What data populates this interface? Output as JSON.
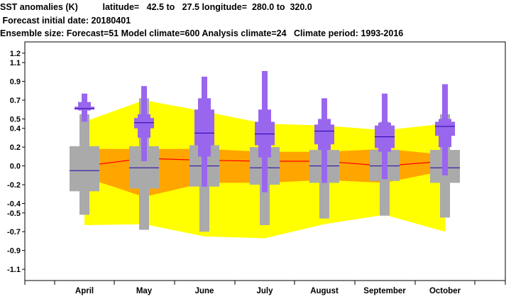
{
  "header": {
    "line1": "SST anomalies (K)          latitude=   42.5 to   27.5 longitude=  280.0 to  320.0",
    "line2": " Forecast initial date: 20180401",
    "line3": "Ensemble size: Forecast=51 Model climate=600 Analysis climate=24   Climate period: 1993-2016"
  },
  "chart_data": {
    "type": "box",
    "categories": [
      "April",
      "May",
      "June",
      "July",
      "August",
      "September",
      "October"
    ],
    "yticks": [
      "1.2",
      "1.1",
      "0.9",
      "0.7",
      "0.5",
      "0.4",
      "0.2",
      "0.0",
      "-0.2",
      "-0.4",
      "-0.5",
      "-0.7",
      "-0.9",
      "-1.1"
    ],
    "ylim": [
      -1.22,
      1.32
    ],
    "grid": false,
    "colors": {
      "climate_outer": "#ffff00",
      "climate_inner": "#ffa500",
      "analysis_line": "#ff0000",
      "climate_box": "#aaaaaa",
      "forecast_box": "#9966ee",
      "median": "#2200aa"
    },
    "climate_band_outer": {
      "upper": [
        0.47,
        0.7,
        0.58,
        0.45,
        0.43,
        0.38,
        0.45
      ],
      "lower": [
        -0.63,
        -0.62,
        -0.75,
        -0.77,
        -0.62,
        -0.52,
        -0.7
      ]
    },
    "climate_band_inner": {
      "upper": [
        0.18,
        0.18,
        0.18,
        0.15,
        0.15,
        0.18,
        0.12
      ],
      "lower": [
        -0.12,
        -0.33,
        -0.18,
        -0.18,
        -0.15,
        -0.18,
        -0.05
      ]
    },
    "analysis_line": [
      0.0,
      0.08,
      0.06,
      0.05,
      0.05,
      0.0,
      0.05
    ],
    "model_climate": [
      {
        "min": -0.52,
        "p10": -0.27,
        "p90": 0.21,
        "max": 0.55,
        "median": -0.05
      },
      {
        "min": -0.68,
        "p10": -0.24,
        "p90": 0.21,
        "max": 0.72,
        "median": -0.02
      },
      {
        "min": -0.7,
        "p10": -0.22,
        "p90": 0.22,
        "max": 0.63,
        "median": 0.0
      },
      {
        "min": -0.63,
        "p10": -0.2,
        "p90": 0.2,
        "max": 0.59,
        "median": -0.02
      },
      {
        "min": -0.56,
        "p10": -0.18,
        "p90": 0.17,
        "max": 0.5,
        "median": 0.0
      },
      {
        "min": -0.53,
        "p10": -0.16,
        "p90": 0.17,
        "max": 0.47,
        "median": 0.0
      },
      {
        "min": -0.55,
        "p10": -0.18,
        "p90": 0.17,
        "max": 0.55,
        "median": -0.02
      }
    ],
    "forecast": [
      {
        "min": 0.47,
        "p10": 0.59,
        "p25": 0.6,
        "p75": 0.63,
        "p90": 0.68,
        "max": 0.77,
        "median": 0.61
      },
      {
        "min": 0.05,
        "p10": 0.3,
        "p25": 0.4,
        "p75": 0.51,
        "p90": 0.55,
        "max": 0.85,
        "median": 0.46
      },
      {
        "min": -0.22,
        "p10": 0.1,
        "p25": 0.22,
        "p75": 0.6,
        "p90": 0.72,
        "max": 0.95,
        "median": 0.35
      },
      {
        "min": -0.28,
        "p10": 0.09,
        "p25": 0.22,
        "p75": 0.47,
        "p90": 0.6,
        "max": 1.01,
        "median": 0.34
      },
      {
        "min": -0.18,
        "p10": 0.17,
        "p25": 0.23,
        "p75": 0.44,
        "p90": 0.5,
        "max": 0.72,
        "median": 0.37
      },
      {
        "min": -0.14,
        "p10": 0.15,
        "p25": 0.19,
        "p75": 0.43,
        "p90": 0.46,
        "max": 0.77,
        "median": 0.31
      },
      {
        "min": -0.1,
        "p10": 0.2,
        "p25": 0.32,
        "p75": 0.47,
        "p90": 0.5,
        "max": 0.87,
        "median": 0.42
      }
    ]
  }
}
